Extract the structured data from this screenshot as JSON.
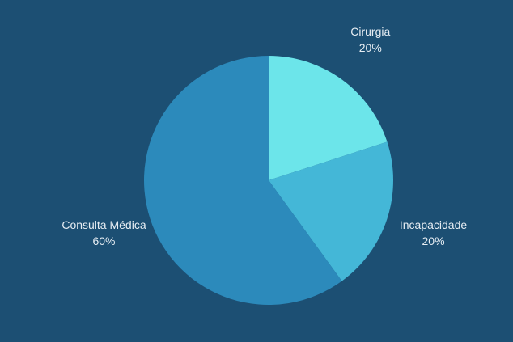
{
  "colors": {
    "background": "#1c4f73",
    "label_text": "#e6edf3"
  },
  "chart_data": {
    "type": "pie",
    "title": "",
    "start": "12 o'clock",
    "direction": "clockwise",
    "legend": "none",
    "slices": [
      {
        "label": "Cirurgia",
        "value": 20,
        "percent_label": "20%",
        "color": "#6ce5ea"
      },
      {
        "label": "Incapacidade",
        "value": 20,
        "percent_label": "20%",
        "color": "#44b7d7"
      },
      {
        "label": "Consulta Médica",
        "value": 60,
        "percent_label": "60%",
        "color": "#2c8abb"
      }
    ]
  }
}
